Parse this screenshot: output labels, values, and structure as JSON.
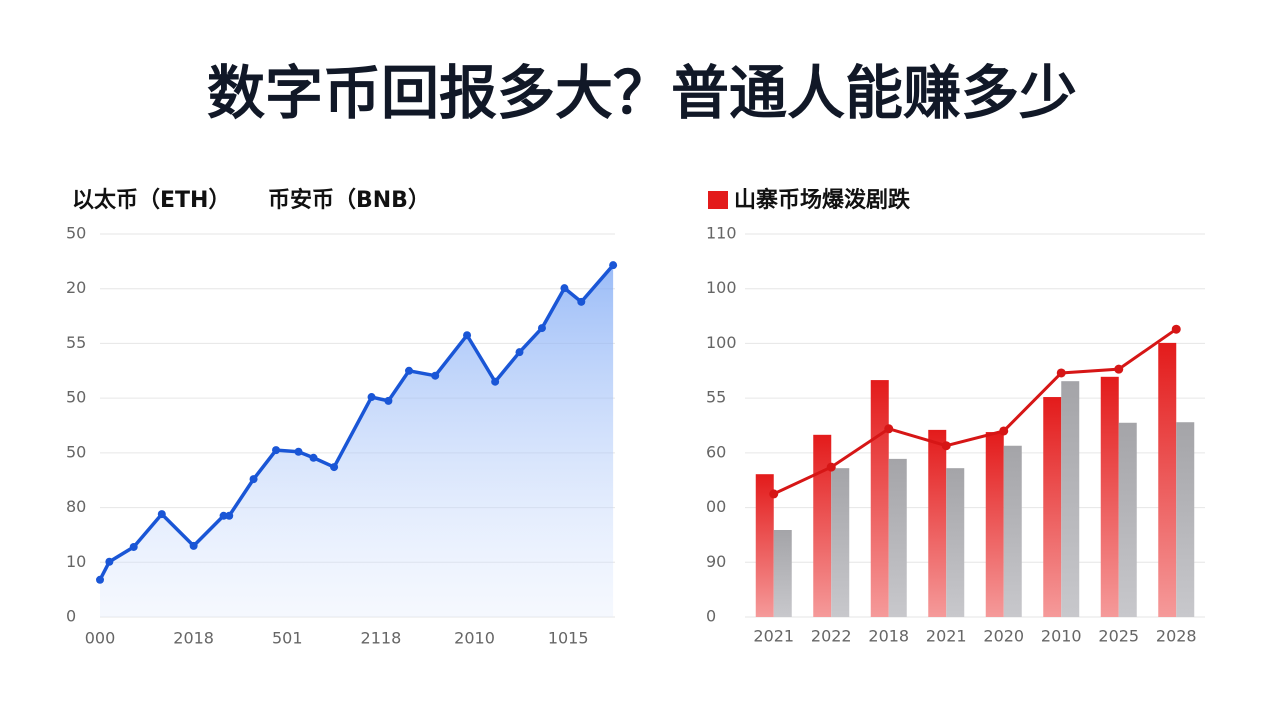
{
  "title": "数字币回报多大？普通人能赚多少",
  "chart_data": [
    {
      "type": "line",
      "legend": [
        "以太币（ETH）",
        "币安币（BNB）"
      ],
      "x": [
        0,
        0.5,
        1.8,
        3.3,
        5,
        6.6,
        6.9,
        8.2,
        9.4,
        10.6,
        11.4,
        12.5,
        14.5,
        15.4,
        16.5,
        17.9,
        19.6,
        21.1,
        22.4,
        23.6,
        24.8,
        25.7,
        27.4
      ],
      "series": [
        {
          "name": "以太币（ETH）",
          "color": "#1a56d6",
          "values": [
            6.8,
            10.1,
            12.8,
            18.8,
            13.0,
            18.5,
            18.5,
            25.2,
            30.5,
            30.2,
            29.1,
            27.4,
            40.2,
            39.5,
            45.0,
            44.1,
            51.5,
            43.0,
            48.4,
            52.8,
            60.1,
            57.6,
            64.3
          ]
        }
      ],
      "xlim": [
        0,
        27.5
      ],
      "xticks": [
        {
          "value": 0,
          "label": "000"
        },
        {
          "value": 5,
          "label": "2018"
        },
        {
          "value": 10,
          "label": "501"
        },
        {
          "value": 15,
          "label": "2118"
        },
        {
          "value": 20,
          "label": "2010"
        },
        {
          "value": 25,
          "label": "1015"
        }
      ],
      "ylim": [
        0,
        70
      ],
      "yticks": [
        0,
        10,
        {
          "value": 20,
          "label": "80"
        },
        {
          "value": 30,
          "label": "50"
        },
        {
          "value": 40,
          "label": "50"
        },
        {
          "value": 50,
          "label": "55"
        },
        {
          "value": 60,
          "label": "20"
        },
        {
          "value": 70,
          "label": "50"
        }
      ],
      "grid": true,
      "area": true
    },
    {
      "type": "bar-line",
      "categories": [
        "2021",
        "2022",
        "2018",
        "2021",
        "2020",
        "2010",
        "2025",
        "2028"
      ],
      "series": [
        {
          "name": "山寨币场爆泼剧跌",
          "kind": "bar",
          "color": "#e31b1b",
          "values": [
            26.1,
            33.3,
            43.3,
            34.2,
            33.8,
            40.2,
            43.9,
            50.1
          ]
        },
        {
          "kind": "bar",
          "color": "#a9a9ad",
          "values": [
            15.9,
            27.2,
            28.9,
            27.2,
            31.3,
            43.1,
            35.5,
            35.6
          ]
        },
        {
          "kind": "line",
          "color": "#d61616",
          "values": [
            22.5,
            27.4,
            34.4,
            31.3,
            34.0,
            44.6,
            45.3,
            52.6
          ]
        }
      ],
      "ylim": [
        0,
        70
      ],
      "yticks": [
        0,
        {
          "value": 10,
          "label": "90"
        },
        {
          "value": 20,
          "label": "00"
        },
        {
          "value": 30,
          "label": "60"
        },
        {
          "value": 40,
          "label": "55"
        },
        {
          "value": 50,
          "label": "100"
        },
        {
          "value": 60,
          "label": "100"
        },
        {
          "value": 70,
          "label": "110"
        }
      ],
      "grid": true
    }
  ]
}
